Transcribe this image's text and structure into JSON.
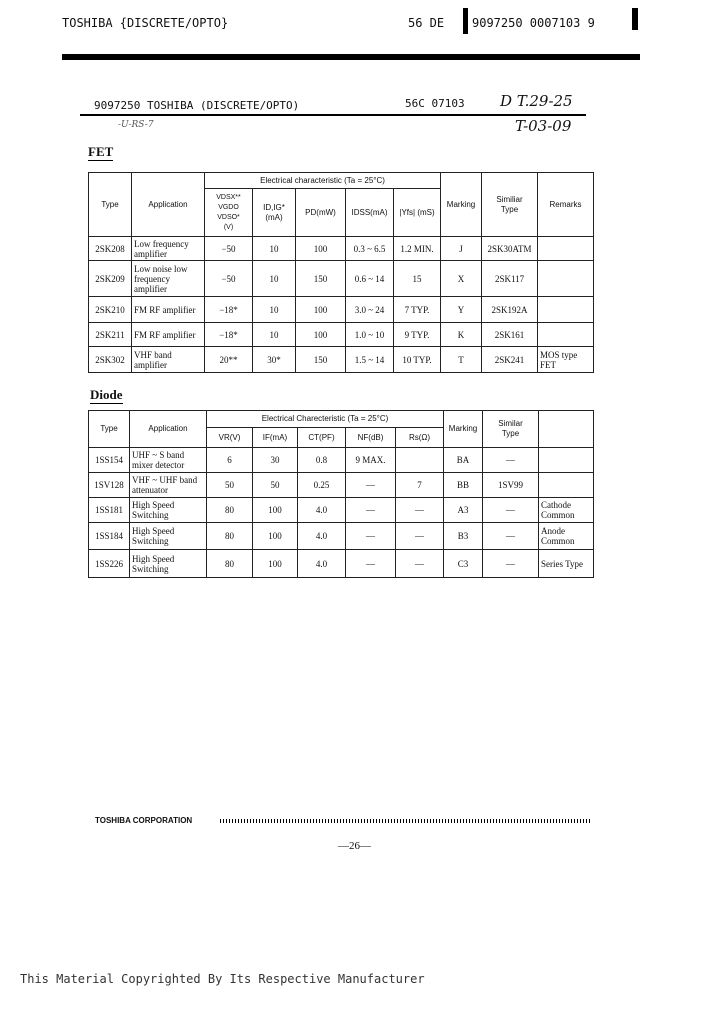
{
  "header": {
    "left": "TOSHIBA {DISCRETE/OPTO}",
    "code": "56  DE",
    "barcode_text": "9097250 0007103 9"
  },
  "subheader": {
    "left": "9097250 TOSHIBA (DISCRETE/OPTO)",
    "code": "56C 07103",
    "hand1": "D T.29-25",
    "hand2": "T-03-09",
    "scribble": "-U-RS-7"
  },
  "fet": {
    "title": "FET",
    "group": "Electrical characteristic (Ta = 25°C)",
    "headers": [
      "Type",
      "Application",
      "VDSX**\nVGDO\nVDSO*\n(V)",
      "ID,IG*\n(mA)",
      "PD(mW)",
      "IDSS(mA)",
      "|Yfs| (mS)",
      "Marking",
      "Similiar\nType",
      "Remarks"
    ],
    "rows": [
      [
        "2SK208",
        "Low frequency amplifier",
        "−50",
        "10",
        "100",
        "0.3 ~ 6.5",
        "1.2 MIN.",
        "J",
        "2SK30ATM",
        ""
      ],
      [
        "2SK209",
        "Low noise low frequency amplifier",
        "−50",
        "10",
        "150",
        "0.6 ~ 14",
        "15",
        "X",
        "2SK117",
        ""
      ],
      [
        "2SK210",
        "FM RF amplifier",
        "−18*",
        "10",
        "100",
        "3.0 ~ 24",
        "7 TYP.",
        "Y",
        "2SK192A",
        ""
      ],
      [
        "2SK211",
        "FM RF amplifier",
        "−18*",
        "10",
        "100",
        "1.0 ~ 10",
        "9 TYP.",
        "K",
        "2SK161",
        ""
      ],
      [
        "2SK302",
        "VHF band amplifier",
        "20**",
        "30*",
        "150",
        "1.5 ~ 14",
        "10 TYP.",
        "T",
        "2SK241",
        "MOS type FET"
      ]
    ]
  },
  "diode": {
    "title": "Diode",
    "group": "Electrical Charecteristic (Ta = 25°C)",
    "headers": [
      "Type",
      "Application",
      "VR(V)",
      "IF(mA)",
      "CT(PF)",
      "NF(dB)",
      "Rs(Ω)",
      "Marking",
      "Similar\nType",
      ""
    ],
    "rows": [
      [
        "1SS154",
        "UHF ~ S band mixer detector",
        "6",
        "30",
        "0.8",
        "9 MAX.",
        "",
        "BA",
        "—",
        ""
      ],
      [
        "1SV128",
        "VHF ~ UHF band attenuator",
        "50",
        "50",
        "0.25",
        "—",
        "7",
        "BB",
        "1SV99",
        ""
      ],
      [
        "1SS181",
        "High Speed Switching",
        "80",
        "100",
        "4.0",
        "—",
        "—",
        "A3",
        "—",
        "Cathode Common"
      ],
      [
        "1SS184",
        "High Speed Switching",
        "80",
        "100",
        "4.0",
        "—",
        "—",
        "B3",
        "—",
        "Anode Common"
      ],
      [
        "1SS226",
        "High Speed Switching",
        "80",
        "100",
        "4.0",
        "—",
        "—",
        "C3",
        "—",
        "Series Type"
      ]
    ]
  },
  "footer": {
    "company": "TOSHIBA CORPORATION",
    "page": "—26—",
    "copyright": "This Material Copyrighted By Its Respective Manufacturer"
  }
}
